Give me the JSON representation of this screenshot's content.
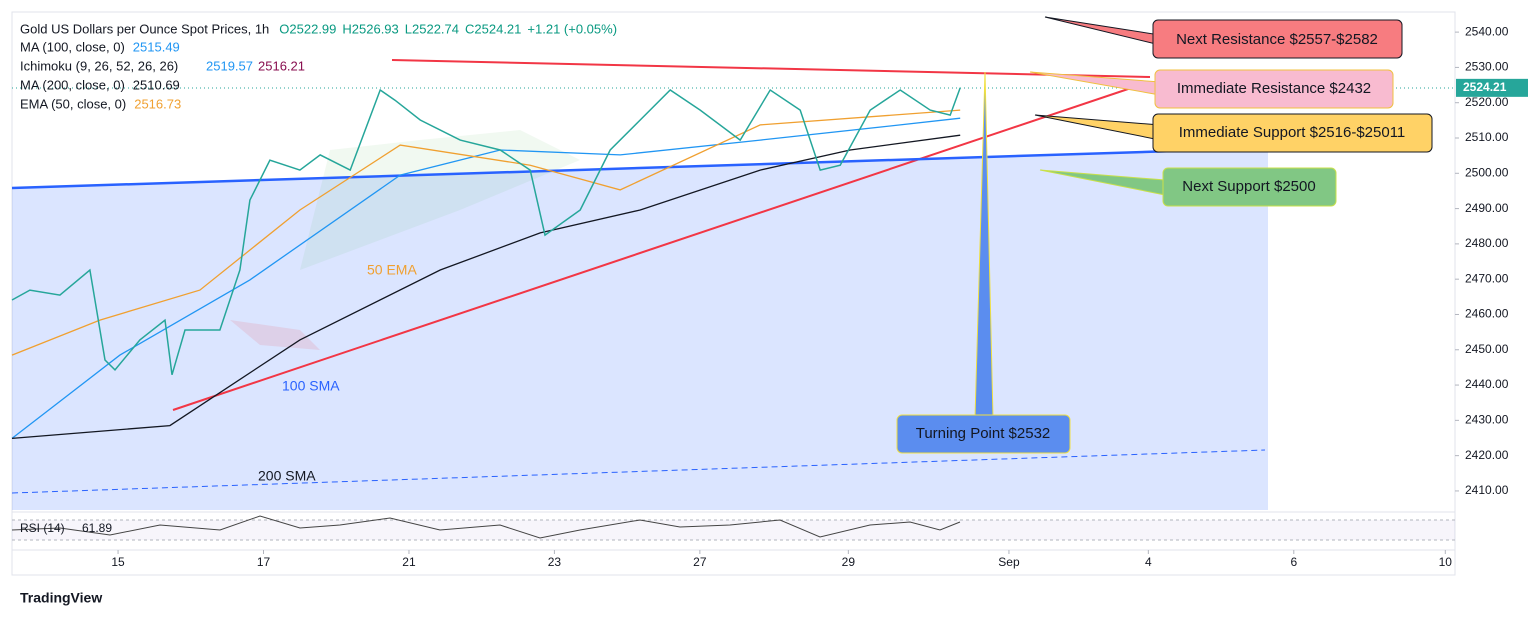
{
  "chart_data": {
    "type": "line",
    "title": "Gold US Dollars per Ounce Spot Prices, 1h",
    "header_quotes": [
      "O2522.99",
      "H2526.93",
      "L2522.74",
      "C2524.21",
      "+1.21 (+0.05%)"
    ],
    "indicator": {
      "name": "Ichimoku (9, 26, 52, 26, 26)",
      "values": [
        2519.57,
        2516.21
      ]
    },
    "x": [
      0,
      5.9,
      15.8,
      25.7,
      30.7,
      34.0,
      42.2,
      50.5,
      52.8,
      57.1,
      68.6,
      75.2,
      78.5,
      85.1,
      95.0,
      101.7,
      111.6,
      121.5,
      126.4,
      134.7,
      147.9,
      161.1,
      171.0,
      175.9,
      187.5,
      197.4,
      207.3,
      217.2,
      227.1,
      240.3,
      250.2,
      260.1,
      266.7,
      273.3,
      283.2,
      293.1,
      303.0,
      309.6,
      312.9
    ],
    "values": [
      2464.1,
      2466.9,
      2465.5,
      2472.6,
      2447.1,
      2444.3,
      2452.8,
      2458.4,
      2442.9,
      2455.6,
      2455.6,
      2472.6,
      2492.4,
      2503.7,
      2500.9,
      2505.2,
      2500.9,
      2523.6,
      2520.7,
      2515.1,
      2509.4,
      2506.6,
      2500.9,
      2482.5,
      2489.6,
      2506.6,
      2515.1,
      2523.6,
      2517.9,
      2509.4,
      2523.6,
      2517.9,
      2500.9,
      2502.3,
      2517.9,
      2523.6,
      2517.9,
      2516.5,
      2524.21
    ],
    "color": "#26a69a",
    "series": [
      {
        "name": "MA (100, close, 0)",
        "legend_value": 2515.49,
        "color": "#2196f3",
        "x": [
          0,
          35.6,
          78.5,
          128.1,
          161.1,
          200.7,
          246.9,
          293.1,
          312.9
        ],
        "values": [
          2424.9,
          2448.5,
          2469.8,
          2499.5,
          2506.6,
          2505.2,
          2509.4,
          2513.7,
          2515.6
        ]
      },
      {
        "name": "MA (200, close, 0)",
        "legend_value": 2510.69,
        "color": "#131722",
        "x": [
          0,
          52.1,
          95.0,
          141.3,
          174.3,
          207.3,
          246.9,
          276.6,
          312.9
        ],
        "values": [
          2424.9,
          2428.5,
          2452.8,
          2472.6,
          2483.1,
          2489.6,
          2500.9,
          2506.6,
          2510.8
        ]
      },
      {
        "name": "EMA (50, close, 0)",
        "legend_value": 2516.73,
        "color": "#f0a030",
        "x": [
          0,
          29.0,
          62.0,
          95.0,
          128.1,
          171.0,
          200.7,
          246.9,
          312.9
        ],
        "values": [
          2448.5,
          2458.4,
          2466.9,
          2489.6,
          2508.0,
          2502.3,
          2495.3,
          2513.7,
          2517.9
        ]
      }
    ],
    "last_price": 2524.21,
    "ylim": [
      2404.6,
      2545.7
    ],
    "yticks": [
      {
        "value": 2410,
        "label": "2410.00"
      },
      {
        "value": 2420,
        "label": "2420.00"
      },
      {
        "value": 2430,
        "label": "2430.00"
      },
      {
        "value": 2440,
        "label": "2440.00"
      },
      {
        "value": 2450,
        "label": "2450.00"
      },
      {
        "value": 2460,
        "label": "2460.00"
      },
      {
        "value": 2470,
        "label": "2470.00"
      },
      {
        "value": 2480,
        "label": "2480.00"
      },
      {
        "value": 2490,
        "label": "2490.00"
      },
      {
        "value": 2500,
        "label": "2500.00"
      },
      {
        "value": 2510,
        "label": "2510.00"
      },
      {
        "value": 2520,
        "label": "2520.00"
      },
      {
        "value": 2530,
        "label": "2530.00"
      },
      {
        "value": 2540,
        "label": "2540.00"
      }
    ],
    "xlim": [
      0,
      476.2
    ],
    "xticks": [
      {
        "value": 35,
        "label": "15"
      },
      {
        "value": 83,
        "label": "17"
      },
      {
        "value": 131,
        "label": "21"
      },
      {
        "value": 179,
        "label": "23"
      },
      {
        "value": 227,
        "label": "27"
      },
      {
        "value": 276,
        "label": "29"
      },
      {
        "value": 329,
        "label": "Sep"
      },
      {
        "value": 375,
        "label": "4"
      },
      {
        "value": 423,
        "label": "6"
      },
      {
        "value": 473,
        "label": "10"
      }
    ],
    "line_labels": [
      "50 EMA",
      "100 SMA",
      "200 SMA"
    ],
    "annotations": [
      "Next Resistance $2557-$2582",
      "Immediate Resistance $2432",
      "Immediate Support $2516-$25011",
      "Next Support $2500",
      "Turning Point $2532"
    ],
    "rsi_label": "RSI (14)",
    "rsi_value": 61.89,
    "footer": "TradingView"
  }
}
